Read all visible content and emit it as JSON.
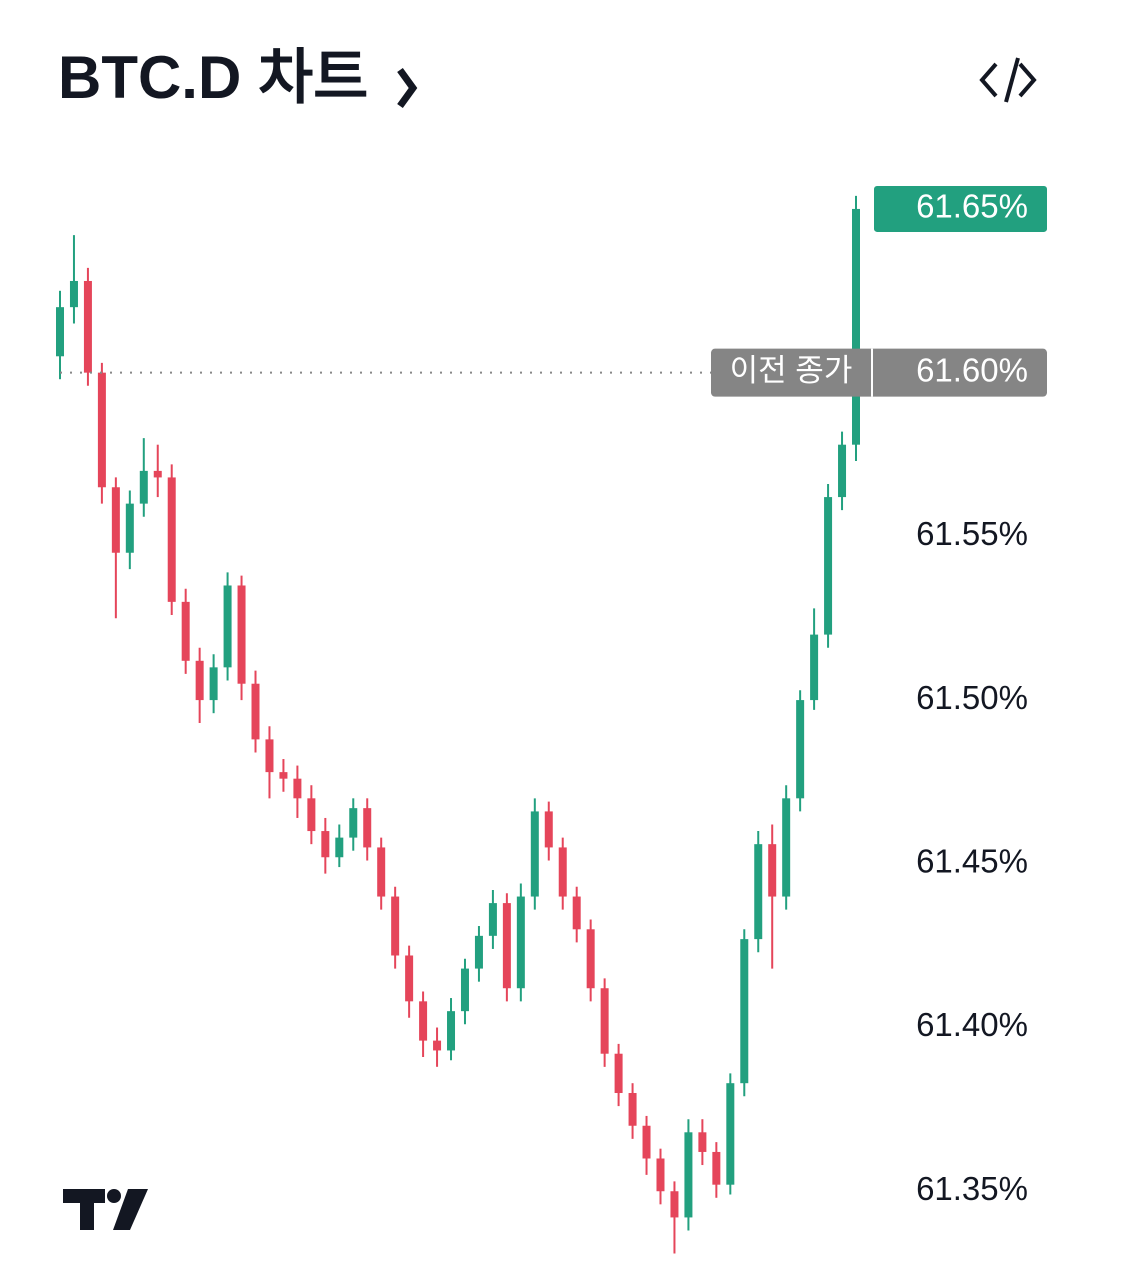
{
  "chart_data": {
    "type": "candlestick",
    "title": "BTC.D 차트",
    "ylim": [
      61.329,
      61.668
    ],
    "yticks": [
      {
        "value": 61.35,
        "label": "61.35%"
      },
      {
        "value": 61.4,
        "label": "61.40%"
      },
      {
        "value": 61.45,
        "label": "61.45%"
      },
      {
        "value": 61.5,
        "label": "61.50%"
      },
      {
        "value": 61.55,
        "label": "61.55%"
      }
    ],
    "grid": false,
    "up_color": "#22a07f",
    "down_color": "#e5455a",
    "previous_close": {
      "value": 61.6,
      "label": "61.60%",
      "caption": "이전 종가"
    },
    "last_price_label": "61.65%",
    "open": [
      61.605,
      61.62,
      61.628,
      61.6,
      61.565,
      61.545,
      61.56,
      61.57,
      61.568,
      61.53,
      61.512,
      61.5,
      61.51,
      61.535,
      61.505,
      61.488,
      61.478,
      61.476,
      61.47,
      61.46,
      61.452,
      61.458,
      61.467,
      61.455,
      61.44,
      61.422,
      61.408,
      61.396,
      61.393,
      61.405,
      61.418,
      61.428,
      61.438,
      61.412,
      61.44,
      61.466,
      61.455,
      61.44,
      61.43,
      61.412,
      61.392,
      61.38,
      61.37,
      61.36,
      61.35,
      61.342,
      61.368,
      61.362,
      61.352,
      61.383,
      61.427,
      61.456,
      61.44,
      61.47,
      61.5,
      61.52,
      61.562,
      61.578
    ],
    "high": [
      61.625,
      61.642,
      61.632,
      61.603,
      61.568,
      61.564,
      61.58,
      61.578,
      61.572,
      61.534,
      61.516,
      61.514,
      61.539,
      61.538,
      61.509,
      61.492,
      61.482,
      61.48,
      61.474,
      61.464,
      61.462,
      61.47,
      61.47,
      61.458,
      61.443,
      61.425,
      61.411,
      61.4,
      61.409,
      61.421,
      61.431,
      61.442,
      61.441,
      61.444,
      61.47,
      61.469,
      61.458,
      61.443,
      61.433,
      61.415,
      61.395,
      61.383,
      61.373,
      61.363,
      61.353,
      61.372,
      61.372,
      61.365,
      61.386,
      61.43,
      61.46,
      61.462,
      61.474,
      61.503,
      61.528,
      61.566,
      61.582,
      61.654
    ],
    "low": [
      61.598,
      61.615,
      61.596,
      61.56,
      61.525,
      61.54,
      61.556,
      61.562,
      61.526,
      61.508,
      61.493,
      61.496,
      61.506,
      61.5,
      61.484,
      61.47,
      61.472,
      61.464,
      61.456,
      61.447,
      61.449,
      61.454,
      61.451,
      61.436,
      61.418,
      61.403,
      61.391,
      61.388,
      61.39,
      61.401,
      61.414,
      61.424,
      61.408,
      61.408,
      61.436,
      61.451,
      61.436,
      61.426,
      61.408,
      61.388,
      61.376,
      61.366,
      61.355,
      61.346,
      61.331,
      61.338,
      61.358,
      61.348,
      61.349,
      61.379,
      61.423,
      61.418,
      61.436,
      61.466,
      61.497,
      61.516,
      61.558,
      61.573
    ],
    "close": [
      61.62,
      61.628,
      61.6,
      61.565,
      61.545,
      61.56,
      61.57,
      61.568,
      61.53,
      61.512,
      61.5,
      61.51,
      61.535,
      61.505,
      61.488,
      61.478,
      61.476,
      61.47,
      61.46,
      61.452,
      61.458,
      61.467,
      61.455,
      61.44,
      61.422,
      61.408,
      61.396,
      61.393,
      61.405,
      61.418,
      61.428,
      61.438,
      61.412,
      61.44,
      61.466,
      61.455,
      61.44,
      61.43,
      61.412,
      61.392,
      61.38,
      61.37,
      61.36,
      61.35,
      61.342,
      61.368,
      61.362,
      61.352,
      61.383,
      61.427,
      61.456,
      61.44,
      61.47,
      61.5,
      61.52,
      61.562,
      61.578,
      61.65
    ]
  }
}
